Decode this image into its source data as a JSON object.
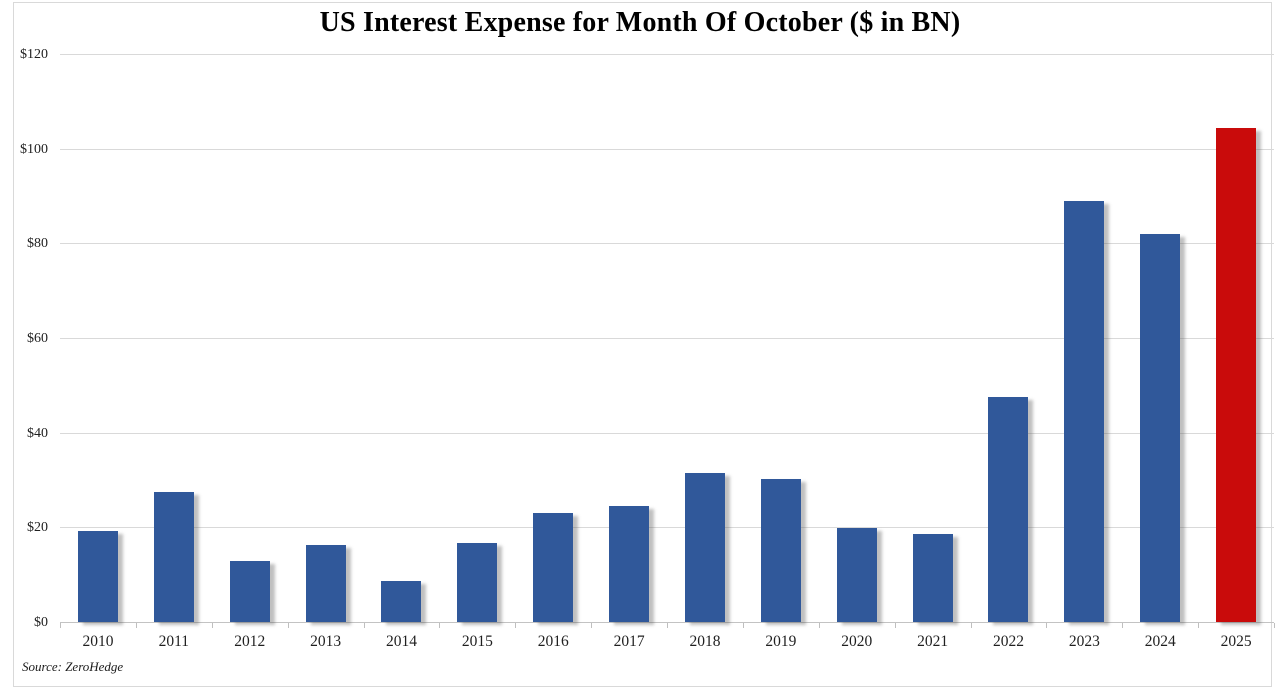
{
  "chart_data": {
    "type": "bar",
    "title": "US Interest Expense for Month Of October ($ in BN)",
    "categories": [
      "2010",
      "2011",
      "2012",
      "2013",
      "2014",
      "2015",
      "2016",
      "2017",
      "2018",
      "2019",
      "2020",
      "2021",
      "2022",
      "2023",
      "2024",
      "2025"
    ],
    "values": [
      19.3,
      27.5,
      12.8,
      16.3,
      8.6,
      16.7,
      23.0,
      24.5,
      31.5,
      30.2,
      19.9,
      18.7,
      47.5,
      88.9,
      81.9,
      104.4
    ],
    "highlight_index": 15,
    "bar_color": "#30589A",
    "highlight_color": "#C90B0B",
    "ylim": [
      0,
      120
    ],
    "ytick_step": 20,
    "ytick_labels": [
      "$0",
      "$20",
      "$40",
      "$60",
      "$80",
      "$100",
      "$120"
    ],
    "xlabel": "",
    "ylabel": "",
    "grid": true,
    "gridline_color": "#D9D9D9",
    "legend": "none",
    "source": "Source: ZeroHedge"
  }
}
